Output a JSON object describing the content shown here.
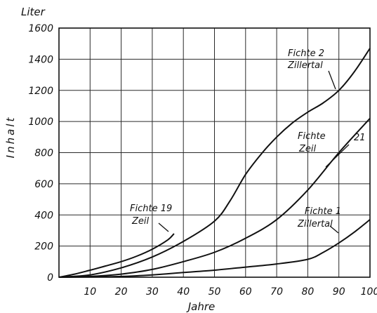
{
  "chart_data": {
    "type": "line",
    "title": "",
    "xlabel": "Jahre",
    "ylabel": "Inhalt",
    "yunit": "Liter",
    "xlim": [
      0,
      100
    ],
    "ylim": [
      0,
      1600
    ],
    "grid": true,
    "xticks": [
      10,
      20,
      30,
      40,
      50,
      60,
      70,
      80,
      90,
      100
    ],
    "yticks": [
      0,
      200,
      400,
      600,
      800,
      1000,
      1200,
      1400,
      1600
    ],
    "series": [
      {
        "name": "Fichte 19 Zeil",
        "label_lines": [
          "Fichte 19",
          "Zeil"
        ],
        "x": [
          0,
          5,
          10,
          15,
          20,
          25,
          30,
          35,
          37
        ],
        "y": [
          0,
          20,
          45,
          72,
          100,
          135,
          180,
          240,
          280
        ]
      },
      {
        "name": "Fichte 2 Zillertal",
        "label_lines": [
          "Fichte 2",
          "Zillertal"
        ],
        "x": [
          0,
          10,
          20,
          30,
          40,
          50,
          55,
          60,
          65,
          70,
          75,
          80,
          85,
          90,
          95,
          100
        ],
        "y": [
          0,
          15,
          60,
          130,
          230,
          360,
          490,
          660,
          790,
          900,
          990,
          1060,
          1120,
          1200,
          1320,
          1470
        ]
      },
      {
        "name": "Fichte 21 Zeil",
        "label_lines": [
          "Fichte",
          "Zeil"
        ],
        "label_extra": "21",
        "x": [
          0,
          10,
          20,
          30,
          40,
          50,
          60,
          70,
          80,
          90,
          100
        ],
        "y": [
          0,
          5,
          20,
          50,
          100,
          160,
          250,
          370,
          560,
          800,
          1020
        ]
      },
      {
        "name": "Fichte 1 Zillertal",
        "label_lines": [
          "Fichte 1",
          "Zillertal"
        ],
        "x": [
          0,
          10,
          20,
          30,
          40,
          50,
          60,
          70,
          80,
          85,
          90,
          95,
          100
        ],
        "y": [
          0,
          2,
          5,
          15,
          30,
          45,
          65,
          85,
          115,
          160,
          220,
          290,
          370
        ]
      }
    ]
  }
}
